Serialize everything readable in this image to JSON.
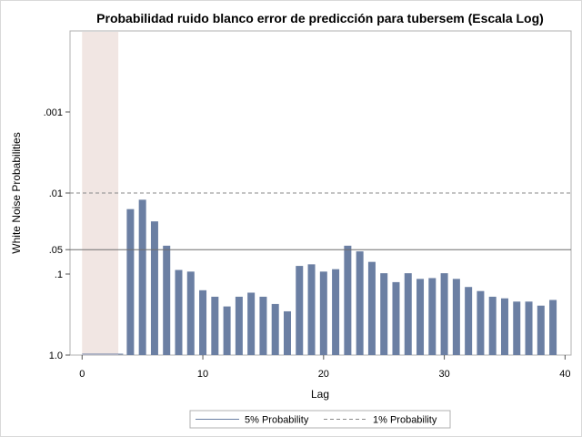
{
  "chart_data": {
    "type": "bar",
    "title": "Probabilidad ruido blanco error de predicción para tubersem (Escala Log)",
    "xlabel": "Lag",
    "ylabel": "White Noise Probabilities",
    "x_ticks": [
      0,
      10,
      20,
      30,
      40
    ],
    "y_scale": "log-reversed",
    "y_ticks": [
      {
        "value": 1.0,
        "label": "1.0"
      },
      {
        "value": 0.1,
        "label": ".1"
      },
      {
        "value": 0.05,
        "label": ".05"
      },
      {
        "value": 0.01,
        "label": ".01"
      },
      {
        "value": 0.001,
        "label": ".001"
      }
    ],
    "ylim": [
      1.0,
      0.0001
    ],
    "xlim": [
      -1,
      40.5
    ],
    "shaded_region": [
      0,
      3
    ],
    "reference_lines": [
      {
        "name": "5% Probability",
        "value": 0.05,
        "style": "solid"
      },
      {
        "name": "1% Probability",
        "value": 0.01,
        "style": "dashed"
      }
    ],
    "bar_color": "#6b7fa3",
    "lags": [
      4,
      5,
      6,
      7,
      8,
      9,
      10,
      11,
      12,
      13,
      14,
      15,
      16,
      17,
      18,
      19,
      20,
      21,
      22,
      23,
      24,
      25,
      26,
      27,
      28,
      29,
      30,
      31,
      32,
      33,
      34,
      35,
      36,
      37,
      38,
      39
    ],
    "values": [
      0.0158,
      0.0121,
      0.0224,
      0.0447,
      0.0891,
      0.0933,
      0.1585,
      0.1905,
      0.2512,
      0.1905,
      0.1698,
      0.1905,
      0.2344,
      0.2884,
      0.0794,
      0.0759,
      0.0933,
      0.0871,
      0.0447,
      0.0525,
      0.0708,
      0.0977,
      0.1259,
      0.0977,
      0.1148,
      0.1122,
      0.0977,
      0.1148,
      0.1445,
      0.1622,
      0.1905,
      0.1995,
      0.2188,
      0.2188,
      0.2455,
      0.2089
    ],
    "legend": [
      "5% Probability",
      "1% Probability"
    ],
    "legend_position": "bottom",
    "grid": false
  }
}
